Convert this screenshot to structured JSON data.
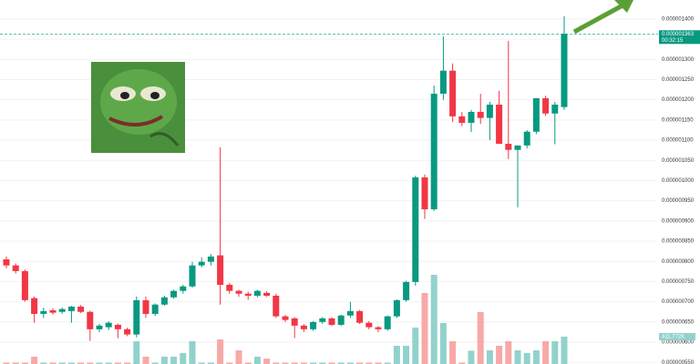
{
  "chart_data": {
    "type": "candlestick",
    "open": [
      8.05e-07,
      7.9e-07,
      7.76e-07,
      7.09e-07,
      6.7e-07,
      6.79e-07,
      6.75e-07,
      6.77e-07,
      6.88e-07,
      6.75e-07,
      6.32e-07,
      6.37e-07,
      6.43e-07,
      6.32e-07,
      6.19e-07,
      7.04e-07,
      6.7e-07,
      6.93e-07,
      7.11e-07,
      7.27e-07,
      7.38e-07,
      7.9e-07,
      7.99e-07,
      8.15e-07,
      7.42e-07,
      7.27e-07,
      7.2e-07,
      7.15e-07,
      7.22e-07,
      7.15e-07,
      6.64e-07,
      6.59e-07,
      6.41e-07,
      6.32e-07,
      6.5e-07,
      6.59e-07,
      6.43e-07,
      6.66e-07,
      6.77e-07,
      6.48e-07,
      6.37e-07,
      6.32e-07,
      6.64e-07,
      7.04e-07,
      7.49e-07,
      1.008e-06,
      9.29e-07,
      1.215e-06,
      1.272e-06,
      1.159e-06,
      1.143e-06,
      1.17e-06,
      1.155e-06,
      1.188e-06,
      1.091e-06,
      1.076e-06,
      1.087e-06,
      1.121e-06,
      1.204e-06,
      1.166e-06,
      1.182e-06
    ],
    "high": [
      8.12e-07,
      7.95e-07,
      7.8e-07,
      7.13e-07,
      6.85e-07,
      6.84e-07,
      6.86e-07,
      6.9e-07,
      6.92e-07,
      6.78e-07,
      6.45e-07,
      6.52e-07,
      6.46e-07,
      6.36e-07,
      7.13e-07,
      7.13e-07,
      6.96e-07,
      7.15e-07,
      7.3e-07,
      7.42e-07,
      7.99e-07,
      8.1e-07,
      8.18e-07,
      1.082e-06,
      7.47e-07,
      7.3e-07,
      7.25e-07,
      7.3e-07,
      7.26e-07,
      7.2e-07,
      6.68e-07,
      6.62e-07,
      6.45e-07,
      6.52e-07,
      6.62e-07,
      6.62e-07,
      6.68e-07,
      7e-07,
      6.8e-07,
      6.52e-07,
      6.4e-07,
      6.66e-07,
      7.06e-07,
      7.52e-07,
      1.012e-06,
      1.015e-06,
      1.235e-06,
      1.357e-06,
      1.29e-06,
      1.17e-06,
      1.175e-06,
      1.215e-06,
      1.195e-06,
      1.222e-06,
      1.346e-06,
      1.087e-06,
      1.125e-06,
      1.204e-06,
      1.21e-06,
      1.195e-06,
      1.407e-06
    ],
    "low": [
      7.83e-07,
      7.7e-07,
      7e-07,
      6.48e-07,
      6.6e-07,
      6.68e-07,
      6.7e-07,
      6.48e-07,
      6.72e-07,
      6.03e-07,
      6.25e-07,
      6.3e-07,
      6.1e-07,
      6.15e-07,
      6.12e-07,
      6.6e-07,
      6.65e-07,
      6.9e-07,
      7.08e-07,
      7.2e-07,
      7.35e-07,
      7.85e-07,
      7.9e-07,
      6.93e-07,
      7.2e-07,
      7.12e-07,
      7.05e-07,
      7.11e-07,
      7.12e-07,
      6.6e-07,
      6.5e-07,
      6.1e-07,
      6.25e-07,
      6.28e-07,
      6.45e-07,
      6.4e-07,
      6.4e-07,
      6.6e-07,
      6.45e-07,
      6.32e-07,
      6.25e-07,
      6.28e-07,
      6.6e-07,
      7e-07,
      7.4e-07,
      9.05e-07,
      9.25e-07,
      1.2e-06,
      1.145e-06,
      1.135e-06,
      1.12e-06,
      1.14e-06,
      1.1e-06,
      1.1e-06,
      1.053e-06,
      9.34e-07,
      1.08e-06,
      1.115e-06,
      1.16e-06,
      1.09e-06,
      1.175e-06
    ],
    "close": [
      7.9e-07,
      7.76e-07,
      7.04e-07,
      6.7e-07,
      6.77e-07,
      6.73e-07,
      6.82e-07,
      6.88e-07,
      6.75e-07,
      6.32e-07,
      6.41e-07,
      6.48e-07,
      6.32e-07,
      6.19e-07,
      7.04e-07,
      6.7e-07,
      6.93e-07,
      7.11e-07,
      7.27e-07,
      7.38e-07,
      7.9e-07,
      7.99e-07,
      8.12e-07,
      7.42e-07,
      7.27e-07,
      7.2e-07,
      7.15e-07,
      7.27e-07,
      7.15e-07,
      6.64e-07,
      6.55e-07,
      6.41e-07,
      6.32e-07,
      6.5e-07,
      6.59e-07,
      6.43e-07,
      6.66e-07,
      6.77e-07,
      6.48e-07,
      6.37e-07,
      6.32e-07,
      6.64e-07,
      7.04e-07,
      7.49e-07,
      1.008e-06,
      9.29e-07,
      1.215e-06,
      1.272e-06,
      1.159e-06,
      1.143e-06,
      1.17e-06,
      1.155e-06,
      1.188e-06,
      1.091e-06,
      1.076e-06,
      1.087e-06,
      1.121e-06,
      1.204e-06,
      1.166e-06,
      1.188e-06,
      1.363e-06
    ],
    "volume": [
      20,
      20,
      20,
      110,
      20,
      20,
      20,
      20,
      20,
      20,
      20,
      20,
      20,
      20,
      343,
      110,
      20,
      110,
      110,
      165,
      343,
      20,
      20,
      370,
      20,
      206,
      20,
      110,
      80,
      20,
      20,
      20,
      20,
      20,
      20,
      20,
      20,
      20,
      20,
      20,
      20,
      20,
      274,
      274,
      549,
      1069,
      1343,
      617,
      343,
      20,
      200,
      781,
      206,
      274,
      343,
      206,
      165,
      206,
      343,
      343,
      411.772
    ],
    "volume_label": "411.772K",
    "up_color": "#089981",
    "down_color": "#f23645",
    "volume_up_color": "#92d2cc",
    "volume_down_color": "#f7a9a7",
    "ylim": [
      5.46e-07,
      1.447e-06
    ],
    "yticks": [
      {
        "value": 5.5e-07,
        "label": "0.000000550"
      },
      {
        "value": 6e-07,
        "label": "0.000000600"
      },
      {
        "value": 6.5e-07,
        "label": "0.000000650"
      },
      {
        "value": 7e-07,
        "label": "0.000000700"
      },
      {
        "value": 7.5e-07,
        "label": "0.000000750"
      },
      {
        "value": 8e-07,
        "label": "0.000000800"
      },
      {
        "value": 8.5e-07,
        "label": "0.000000850"
      },
      {
        "value": 9e-07,
        "label": "0.000000900"
      },
      {
        "value": 9.5e-07,
        "label": "0.000000950"
      },
      {
        "value": 1e-06,
        "label": "0.000001000"
      },
      {
        "value": 1.05e-06,
        "label": "0.000001050"
      },
      {
        "value": 1.1e-06,
        "label": "0.000001100"
      },
      {
        "value": 1.15e-06,
        "label": "0.000001150"
      },
      {
        "value": 1.2e-06,
        "label": "0.000001200"
      },
      {
        "value": 1.25e-06,
        "label": "0.000001250"
      },
      {
        "value": 1.3e-06,
        "label": "0.000001300"
      },
      {
        "value": 1.35e-06,
        "label": "0.000001350"
      },
      {
        "value": 1.4e-06,
        "label": "0.000001400"
      }
    ],
    "last_price": {
      "value": 1.363e-06,
      "label": "0.000001363"
    },
    "countdown": "00:32:15",
    "grid": true
  }
}
